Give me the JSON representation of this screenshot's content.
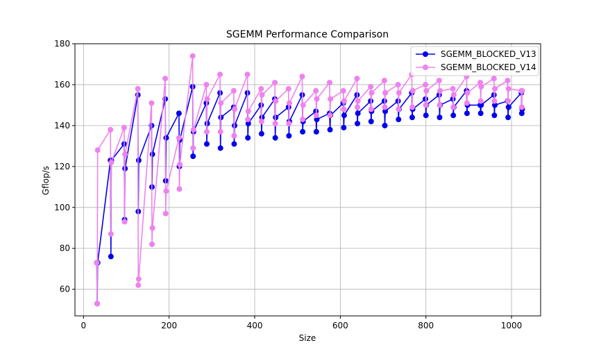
{
  "chart_data": {
    "type": "line",
    "title": "SGEMM Performance Comparison",
    "xlabel": "Size",
    "ylabel": "Gflop/s",
    "xlim": [
      -20,
      1068
    ],
    "ylim": [
      47,
      180
    ],
    "xticks": [
      0,
      200,
      400,
      600,
      800,
      1000
    ],
    "yticks": [
      60,
      80,
      100,
      120,
      140,
      160,
      180
    ],
    "grid": true,
    "legend_position": "top-right",
    "colors": {
      "v13": "#0000ee",
      "v14": "#ee82ee"
    },
    "series": [
      {
        "name": "SGEMM_BLOCKED_V13",
        "color": "#0000ee",
        "points": [
          [
            31,
            73
          ],
          [
            32,
            53
          ],
          [
            33,
            73
          ],
          [
            63,
            123
          ],
          [
            64,
            76
          ],
          [
            65,
            123
          ],
          [
            95,
            131
          ],
          [
            96,
            94
          ],
          [
            97,
            119
          ],
          [
            127,
            155
          ],
          [
            128,
            98
          ],
          [
            129,
            123
          ],
          [
            159,
            140
          ],
          [
            160,
            110
          ],
          [
            161,
            126
          ],
          [
            191,
            153
          ],
          [
            192,
            113
          ],
          [
            193,
            134
          ],
          [
            223,
            146
          ],
          [
            224,
            120
          ],
          [
            225,
            133
          ],
          [
            255,
            159
          ],
          [
            256,
            125
          ],
          [
            257,
            137
          ],
          [
            287,
            151
          ],
          [
            288,
            131
          ],
          [
            289,
            141
          ],
          [
            319,
            156
          ],
          [
            320,
            129
          ],
          [
            321,
            144
          ],
          [
            351,
            149
          ],
          [
            352,
            131
          ],
          [
            353,
            140
          ],
          [
            383,
            156
          ],
          [
            384,
            134
          ],
          [
            385,
            141
          ],
          [
            415,
            150
          ],
          [
            416,
            136
          ],
          [
            417,
            144
          ],
          [
            447,
            153
          ],
          [
            448,
            134
          ],
          [
            449,
            144
          ],
          [
            479,
            149
          ],
          [
            480,
            135
          ],
          [
            481,
            142
          ],
          [
            511,
            155
          ],
          [
            512,
            137
          ],
          [
            513,
            142
          ],
          [
            543,
            147
          ],
          [
            544,
            137
          ],
          [
            545,
            143
          ],
          [
            575,
            146
          ],
          [
            576,
            138
          ],
          [
            577,
            145
          ],
          [
            607,
            151
          ],
          [
            608,
            139
          ],
          [
            609,
            145
          ],
          [
            639,
            155
          ],
          [
            640,
            141
          ],
          [
            641,
            146
          ],
          [
            671,
            152
          ],
          [
            672,
            142
          ],
          [
            673,
            147
          ],
          [
            703,
            152
          ],
          [
            704,
            140
          ],
          [
            705,
            147
          ],
          [
            735,
            152
          ],
          [
            736,
            143
          ],
          [
            737,
            148
          ],
          [
            767,
            156
          ],
          [
            768,
            144
          ],
          [
            769,
            148
          ],
          [
            799,
            153
          ],
          [
            800,
            145
          ],
          [
            801,
            150
          ],
          [
            831,
            155
          ],
          [
            832,
            144
          ],
          [
            833,
            150
          ],
          [
            863,
            153
          ],
          [
            864,
            145
          ],
          [
            865,
            149
          ],
          [
            895,
            157
          ],
          [
            896,
            146
          ],
          [
            897,
            150
          ],
          [
            927,
            150
          ],
          [
            928,
            146
          ],
          [
            929,
            150
          ],
          [
            959,
            155
          ],
          [
            960,
            145
          ],
          [
            961,
            150
          ],
          [
            991,
            152
          ],
          [
            992,
            144
          ],
          [
            993,
            149
          ],
          [
            1023,
            156
          ],
          [
            1024,
            146
          ],
          [
            1025,
            148
          ]
        ]
      },
      {
        "name": "SGEMM_BLOCKED_V14",
        "color": "#ee82ee",
        "points": [
          [
            31,
            73
          ],
          [
            32,
            53
          ],
          [
            33,
            128
          ],
          [
            63,
            138
          ],
          [
            64,
            87
          ],
          [
            65,
            122
          ],
          [
            95,
            139
          ],
          [
            96,
            93
          ],
          [
            97,
            126
          ],
          [
            127,
            158
          ],
          [
            128,
            62
          ],
          [
            129,
            65
          ],
          [
            159,
            151
          ],
          [
            160,
            82
          ],
          [
            161,
            90
          ],
          [
            191,
            163
          ],
          [
            192,
            97
          ],
          [
            193,
            108
          ],
          [
            223,
            134
          ],
          [
            224,
            109
          ],
          [
            225,
            121
          ],
          [
            255,
            174
          ],
          [
            256,
            129
          ],
          [
            257,
            138
          ],
          [
            287,
            160
          ],
          [
            288,
            137
          ],
          [
            289,
            153
          ],
          [
            319,
            165
          ],
          [
            320,
            137
          ],
          [
            321,
            151
          ],
          [
            351,
            157
          ],
          [
            352,
            135
          ],
          [
            353,
            148
          ],
          [
            383,
            165
          ],
          [
            384,
            143
          ],
          [
            385,
            147
          ],
          [
            415,
            158
          ],
          [
            416,
            142
          ],
          [
            417,
            155
          ],
          [
            447,
            161
          ],
          [
            448,
            141
          ],
          [
            449,
            152
          ],
          [
            479,
            158
          ],
          [
            480,
            141
          ],
          [
            481,
            151
          ],
          [
            511,
            164
          ],
          [
            512,
            143
          ],
          [
            513,
            150
          ],
          [
            543,
            157
          ],
          [
            544,
            145
          ],
          [
            545,
            153
          ],
          [
            575,
            161
          ],
          [
            576,
            145
          ],
          [
            577,
            153
          ],
          [
            607,
            157
          ],
          [
            608,
            148
          ],
          [
            609,
            152
          ],
          [
            639,
            163
          ],
          [
            640,
            149
          ],
          [
            641,
            152
          ],
          [
            671,
            159
          ],
          [
            672,
            148
          ],
          [
            673,
            156
          ],
          [
            703,
            162
          ],
          [
            704,
            149
          ],
          [
            705,
            156
          ],
          [
            735,
            160
          ],
          [
            736,
            148
          ],
          [
            737,
            156
          ],
          [
            767,
            165
          ],
          [
            768,
            149
          ],
          [
            769,
            157
          ],
          [
            799,
            160
          ],
          [
            800,
            150
          ],
          [
            801,
            157
          ],
          [
            831,
            162
          ],
          [
            832,
            150
          ],
          [
            833,
            157
          ],
          [
            863,
            158
          ],
          [
            864,
            149
          ],
          [
            865,
            155
          ],
          [
            895,
            164
          ],
          [
            896,
            151
          ],
          [
            897,
            156
          ],
          [
            927,
            161
          ],
          [
            928,
            152
          ],
          [
            929,
            159
          ],
          [
            959,
            163
          ],
          [
            960,
            152
          ],
          [
            961,
            158
          ],
          [
            991,
            162
          ],
          [
            992,
            152
          ],
          [
            993,
            158
          ],
          [
            1023,
            157
          ],
          [
            1024,
            149
          ],
          [
            1025,
            157
          ]
        ]
      }
    ]
  }
}
